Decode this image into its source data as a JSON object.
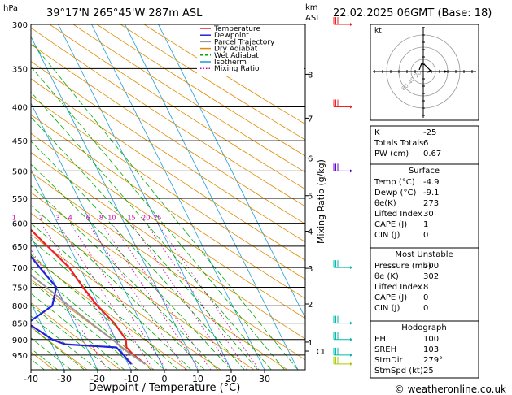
{
  "header": {
    "location": "39°17'N  265°45'W  287m  ASL",
    "datetime": "22.02.2025  06GMT  (Base: 18)",
    "hpa_label": "hPa",
    "km_label": "km",
    "asl_label": "ASL",
    "mixing_axis_label": "Mixing Ratio (g/kg)",
    "x_axis_label": "Dewpoint / Temperature (°C)",
    "credit": "© weatheronline.co.uk"
  },
  "chart_data": {
    "type": "line",
    "title": "",
    "pressure_levels": [
      300,
      350,
      400,
      450,
      500,
      550,
      600,
      650,
      700,
      750,
      800,
      850,
      900,
      950
    ],
    "x_ticks": [
      -40,
      -30,
      -20,
      -10,
      0,
      10,
      20,
      30
    ],
    "km_ticks": [
      {
        "label": "8",
        "p": 357
      },
      {
        "label": "7",
        "p": 416
      },
      {
        "label": "6",
        "p": 478
      },
      {
        "label": "5",
        "p": 545
      },
      {
        "label": "4",
        "p": 617
      },
      {
        "label": "3",
        "p": 702
      },
      {
        "label": "2",
        "p": 795
      },
      {
        "label": "1",
        "p": 908
      }
    ],
    "lcl": {
      "label": "LCL",
      "p": 937
    },
    "mixing_ratio_labels": [
      "1",
      "2",
      "3",
      "4",
      "6",
      "8",
      "10",
      "15",
      "20",
      "25"
    ],
    "legend": [
      {
        "name": "Temperature",
        "color": "#ee2222"
      },
      {
        "name": "Dewpoint",
        "color": "#2222dd"
      },
      {
        "name": "Parcel Trajectory",
        "color": "#999999"
      },
      {
        "name": "Dry Adiabat",
        "color": "#e08a00"
      },
      {
        "name": "Wet Adiabat",
        "color": "#00aa00"
      },
      {
        "name": "Isotherm",
        "color": "#1a9ad6"
      },
      {
        "name": "Mixing Ratio",
        "color": "#cc00aa"
      }
    ],
    "series": [
      {
        "name": "Temperature",
        "points": [
          [
            980,
            -4.9
          ],
          [
            950,
            -7.0
          ],
          [
            925,
            -8.0
          ],
          [
            900,
            -7.0
          ],
          [
            850,
            -8.0
          ],
          [
            800,
            -10.5
          ],
          [
            750,
            -12.0
          ],
          [
            700,
            -13.2
          ],
          [
            650,
            -16.5
          ],
          [
            600,
            -20.0
          ],
          [
            550,
            -24.5
          ],
          [
            500,
            -29.5
          ],
          [
            450,
            -35.5
          ],
          [
            400,
            -42.0
          ],
          [
            350,
            -49.5
          ],
          [
            300,
            -56.5
          ]
        ]
      },
      {
        "name": "Dewpoint",
        "points": [
          [
            980,
            -9.1
          ],
          [
            950,
            -10.0
          ],
          [
            925,
            -11.0
          ],
          [
            915,
            -26.0
          ],
          [
            900,
            -29.0
          ],
          [
            850,
            -34.0
          ],
          [
            800,
            -24.0
          ],
          [
            750,
            -20.0
          ],
          [
            700,
            -22.0
          ],
          [
            650,
            -24.0
          ],
          [
            600,
            -26.0
          ],
          [
            550,
            -28.0
          ],
          [
            500,
            -39.0
          ],
          [
            450,
            -39.0
          ],
          [
            400,
            -46.0
          ],
          [
            350,
            -55.0
          ],
          [
            300,
            -64.0
          ]
        ]
      },
      {
        "name": "Parcel Trajectory",
        "points": [
          [
            980,
            -4.9
          ],
          [
            950,
            -7.5
          ],
          [
            925,
            -9.5
          ],
          [
            900,
            -11.0
          ],
          [
            850,
            -15.0
          ],
          [
            800,
            -19.0
          ],
          [
            750,
            -23.0
          ],
          [
            700,
            -27.5
          ],
          [
            650,
            -32.0
          ],
          [
            600,
            -37.0
          ],
          [
            550,
            -42.5
          ],
          [
            500,
            -48.5
          ],
          [
            450,
            -55.0
          ],
          [
            400,
            -62.0
          ],
          [
            350,
            -70.0
          ],
          [
            300,
            -78.0
          ]
        ]
      }
    ],
    "wind_barbs": [
      {
        "p": 300,
        "color": "#ee2222"
      },
      {
        "p": 400,
        "color": "#ee2222"
      },
      {
        "p": 500,
        "color": "#6600cc"
      },
      {
        "p": 700,
        "color": "#00bbaa"
      },
      {
        "p": 850,
        "color": "#00bbaa"
      },
      {
        "p": 900,
        "color": "#00bbaa"
      },
      {
        "p": 950,
        "color": "#00bbaa"
      },
      {
        "p": 980,
        "color": "#aacc00"
      }
    ]
  },
  "hodograph": {
    "unit": "kt",
    "ring_labels": [
      "20",
      "40",
      "60"
    ]
  },
  "indices": {
    "rows": [
      {
        "label": "K",
        "value": "-25"
      },
      {
        "label": "Totals Totals",
        "value": "6"
      },
      {
        "label": "PW (cm)",
        "value": "0.67"
      }
    ]
  },
  "surface": {
    "title": "Surface",
    "rows": [
      {
        "label": "Temp (°C)",
        "value": "-4.9"
      },
      {
        "label": "Dewp (°C)",
        "value": "-9.1"
      },
      {
        "label": "θe(K)",
        "value": "273"
      },
      {
        "label": "Lifted Index",
        "value": "30"
      },
      {
        "label": "CAPE (J)",
        "value": "1"
      },
      {
        "label": "CIN (J)",
        "value": "0"
      }
    ]
  },
  "most_unstable": {
    "title": "Most Unstable",
    "rows": [
      {
        "label": "Pressure (mb)",
        "value": "700"
      },
      {
        "label": "θe (K)",
        "value": "302"
      },
      {
        "label": "Lifted Index",
        "value": "8"
      },
      {
        "label": "CAPE (J)",
        "value": "0"
      },
      {
        "label": "CIN (J)",
        "value": "0"
      }
    ]
  },
  "hodograph_table": {
    "title": "Hodograph",
    "rows": [
      {
        "label": "EH",
        "value": "100"
      },
      {
        "label": "SREH",
        "value": "103"
      },
      {
        "label": "StmDir",
        "value": "279°"
      },
      {
        "label": "StmSpd (kt)",
        "value": "25"
      }
    ]
  }
}
